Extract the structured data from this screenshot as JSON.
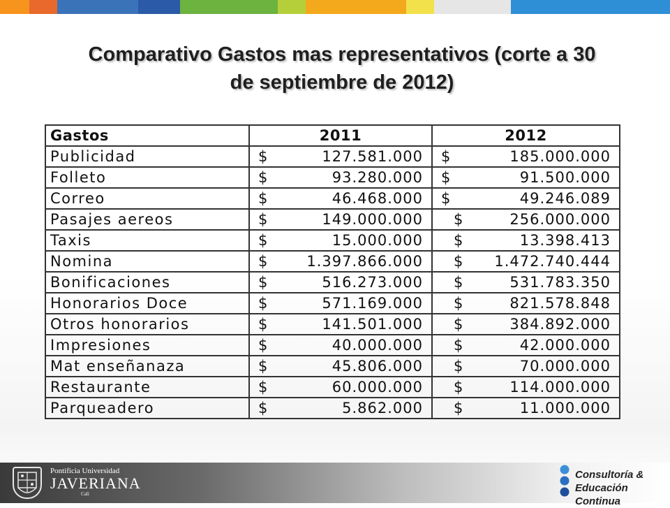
{
  "stripe": [
    {
      "color": "#f7941d",
      "w": 42
    },
    {
      "color": "#e8692b",
      "w": 40
    },
    {
      "color": "#3b73b9",
      "w": 116
    },
    {
      "color": "#2b5aa8",
      "w": 60
    },
    {
      "color": "#6cb33f",
      "w": 140
    },
    {
      "color": "#b5cf3a",
      "w": 40
    },
    {
      "color": "#f4a81c",
      "w": 144
    },
    {
      "color": "#f2e14a",
      "w": 40
    },
    {
      "color": "#e6e6e6",
      "w": 110
    },
    {
      "color": "#2e8fd6",
      "w": 228
    }
  ],
  "title": {
    "line1": "Comparativo Gastos mas representativos (corte a 30",
    "line2": "de septiembre de 2012)"
  },
  "table": {
    "headers": [
      "Gastos",
      "2011",
      "2012"
    ],
    "currency": "$",
    "rows": [
      {
        "label": "Publicidad",
        "y2011": "127.581.000",
        "y2012": "185.000.000",
        "indent2012": false
      },
      {
        "label": "Folleto",
        "y2011": "93.280.000",
        "y2012": "91.500.000",
        "indent2012": false
      },
      {
        "label": "Correo",
        "y2011": "46.468.000",
        "y2012": "49.246.089",
        "indent2012": false
      },
      {
        "label": "Pasajes aereos",
        "y2011": "149.000.000",
        "y2012": "256.000.000",
        "indent2012": true
      },
      {
        "label": "Taxis",
        "y2011": "15.000.000",
        "y2012": "13.398.413",
        "indent2012": true
      },
      {
        "label": "Nomina",
        "y2011": "1.397.866.000",
        "y2012": "1.472.740.444",
        "indent2012": true
      },
      {
        "label": "Bonificaciones",
        "y2011": "516.273.000",
        "y2012": "531.783.350",
        "indent2012": true
      },
      {
        "label": "Honorarios Doce",
        "y2011": "571.169.000",
        "y2012": "821.578.848",
        "indent2012": true
      },
      {
        "label": "Otros honorarios",
        "y2011": "141.501.000",
        "y2012": "384.892.000",
        "indent2012": true
      },
      {
        "label": "Impresiones",
        "y2011": "40.000.000",
        "y2012": "42.000.000",
        "indent2012": true
      },
      {
        "label": "Mat enseñanaza",
        "y2011": "45.806.000",
        "y2012": "70.000.000",
        "indent2012": true
      },
      {
        "label": "Restaurante",
        "y2011": "60.000.000",
        "y2012": "114.000.000",
        "indent2012": true
      },
      {
        "label": "Parqueadero",
        "y2011": "5.862.000",
        "y2012": "11.000.000",
        "indent2012": true
      }
    ]
  },
  "footer": {
    "university": {
      "line1": "Pontificia Universidad",
      "line2": "JAVERIANA",
      "line3": "Cali"
    },
    "consulting": {
      "line1": "Consultoría &",
      "line2": "Educación Continua"
    },
    "icons": [
      "javeriana-crest-icon",
      "consulting-dots-icon"
    ]
  }
}
